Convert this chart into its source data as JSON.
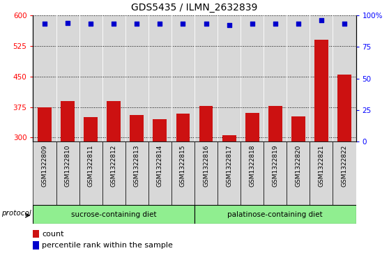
{
  "title": "GDS5435 / ILMN_2632839",
  "samples": [
    "GSM1322809",
    "GSM1322810",
    "GSM1322811",
    "GSM1322812",
    "GSM1322813",
    "GSM1322814",
    "GSM1322815",
    "GSM1322816",
    "GSM1322817",
    "GSM1322818",
    "GSM1322819",
    "GSM1322820",
    "GSM1322821",
    "GSM1322822"
  ],
  "count_values": [
    375,
    390,
    350,
    390,
    355,
    345,
    358,
    378,
    305,
    360,
    378,
    352,
    540,
    455
  ],
  "percentile_values": [
    93,
    94,
    93,
    93,
    93,
    93,
    93,
    93,
    92,
    93,
    93,
    93,
    96,
    93
  ],
  "ylim_left": [
    290,
    600
  ],
  "ylim_right": [
    0,
    100
  ],
  "yticks_left": [
    300,
    375,
    450,
    525,
    600
  ],
  "yticks_right": [
    0,
    25,
    50,
    75,
    100
  ],
  "bar_color": "#cc1111",
  "dot_color": "#0000cc",
  "background_plot": "#d8d8d8",
  "group1_label": "sucrose-containing diet",
  "group2_label": "palatinose-containing diet",
  "group1_color": "#90ee90",
  "group2_color": "#90ee90",
  "group1_count": 7,
  "group2_count": 7,
  "protocol_label": "protocol",
  "title_fontsize": 10,
  "tick_fontsize": 7.5,
  "label_fontsize": 8,
  "legend_fontsize": 8
}
